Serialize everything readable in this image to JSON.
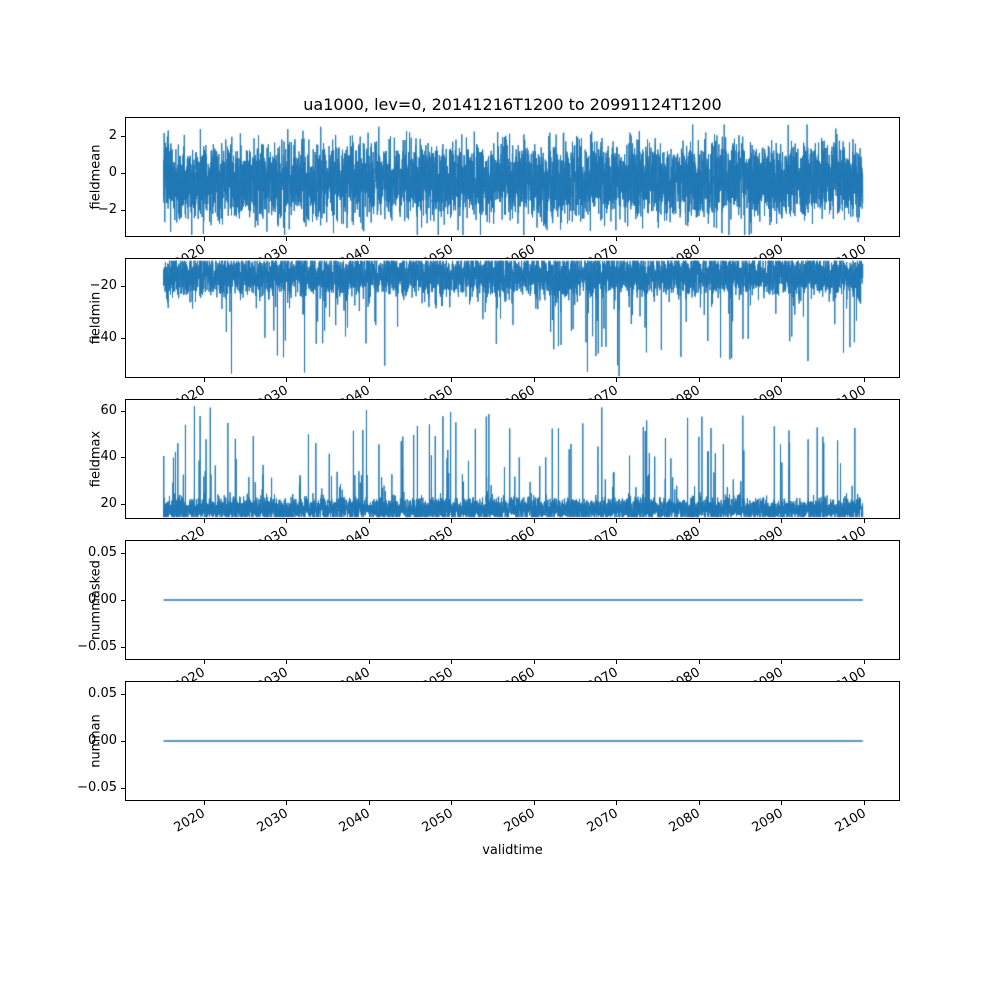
{
  "chart_data": {
    "type": "line",
    "title": "ua1000, lev=0, 20141216T1200 to 20991124T1200",
    "xlabel": "validtime",
    "line_color": "#1f77b4",
    "background": "#ffffff",
    "xlim": [
      2010.4,
      2104.3
    ],
    "x_range": [
      2014.96,
      2099.9
    ],
    "xticks": {
      "values": [
        2020,
        2030,
        2040,
        2050,
        2060,
        2070,
        2080,
        2090,
        2100
      ],
      "labels": [
        "2020",
        "2030",
        "2040",
        "2050",
        "2060",
        "2070",
        "2080",
        "2090",
        "2100"
      ]
    },
    "subplots": [
      {
        "name": "fieldmean",
        "ylabel": "fieldmean",
        "ylim": [
          -3.4,
          2.95
        ],
        "ytick_values": [
          -2,
          0,
          2
        ],
        "ytick_labels": [
          "−2",
          "0",
          "2"
        ],
        "series": {
          "kind": "noise",
          "mean": -0.4,
          "std": 1.0,
          "clamp_low": -3.35,
          "clamp_high": 2.6,
          "spike_prob": 0,
          "spike_base": 0,
          "spike_span": 0,
          "spike_pow": 1,
          "seed": 7,
          "n": 6000
        }
      },
      {
        "name": "fieldmin",
        "ylabel": "fieldmin",
        "ylim": [
          -55.3,
          -9.5
        ],
        "ytick_values": [
          -20,
          -40
        ],
        "ytick_labels": [
          "−20",
          "−40"
        ],
        "series": {
          "kind": "noise",
          "mean": -16,
          "std": 4.0,
          "clamp_low": null,
          "clamp_high": -10.2,
          "spike_prob": 0.015,
          "spike_base": -28,
          "spike_span": -27,
          "spike_pow": 1.5,
          "seed": 11,
          "n": 6000
        }
      },
      {
        "name": "fieldmax",
        "ylabel": "fieldmax",
        "ylim": [
          13.8,
          64.6
        ],
        "ytick_values": [
          20,
          40,
          60
        ],
        "ytick_labels": [
          "20",
          "40",
          "60"
        ],
        "series": {
          "kind": "noise",
          "mean": 17.5,
          "std": 2.5,
          "clamp_low": 14.2,
          "clamp_high": null,
          "spike_prob": 0.02,
          "spike_base": 27,
          "spike_span": 35,
          "spike_pow": 1.5,
          "seed": 13,
          "n": 6000
        }
      },
      {
        "name": "nummasked",
        "ylabel": "nummasked",
        "ylim": [
          -0.0625,
          0.0625
        ],
        "ytick_values": [
          0.05,
          0.0,
          -0.05
        ],
        "ytick_labels": [
          "0.05",
          "0.00",
          "−0.05"
        ],
        "series": {
          "kind": "const",
          "value": 0
        }
      },
      {
        "name": "numnan",
        "ylabel": "numnan",
        "ylim": [
          -0.0625,
          0.0625
        ],
        "ytick_values": [
          0.05,
          0.0,
          -0.05
        ],
        "ytick_labels": [
          "0.05",
          "0.00",
          "−0.05"
        ],
        "series": {
          "kind": "const",
          "value": 0
        }
      }
    ]
  }
}
